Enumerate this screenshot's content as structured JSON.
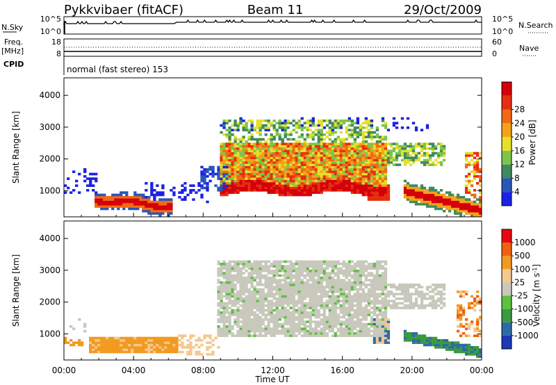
{
  "header": {
    "radar": "Pykkvibaer (fitACF)",
    "beam": "Beam 11",
    "date": "29/Oct/2009"
  },
  "status_panels": {
    "nsky_label": "N.Sky",
    "nsky_ticks": [
      "10^5",
      "10^0"
    ],
    "nsearch_label": "N.Search",
    "nsearch_ticks": [
      "10^5",
      "10^0"
    ],
    "freq_label_line1": "Freq.",
    "freq_label_line2": "[MHz]",
    "freq_ticks": [
      "18",
      "8"
    ],
    "nave_label": "Nave",
    "nave_ticks": [
      "60",
      "0"
    ],
    "cpid_label": "CPID",
    "cpid_value": "normal (fast stereo) 153"
  },
  "colors": {
    "power_scale": [
      "#1a22e6",
      "#2a56b8",
      "#3f8a5e",
      "#7fc44a",
      "#e6e02a",
      "#f5a21a",
      "#f06a14",
      "#e62e10",
      "#d4000a"
    ],
    "velocity_scale": [
      "#e60a10",
      "#f06010",
      "#f29a20",
      "#f5c890",
      "#c8c8bc",
      "#5cc040",
      "#3a9a40",
      "#2e6aa8",
      "#1a3ab8"
    ]
  },
  "chart_data": [
    {
      "type": "heatmap",
      "title": "",
      "ylabel": "Slant Range [km]",
      "xlabel": "",
      "x_ticks": [
        "00:00",
        "04:00",
        "08:00",
        "12:00",
        "16:00",
        "20:00",
        "00:00"
      ],
      "y_ticks": [
        "1000",
        "2000",
        "3000",
        "4000"
      ],
      "ylim": [
        180,
        4550
      ],
      "xlim_hours": [
        0,
        24
      ],
      "colorbar_label": "Power [dB]",
      "colorbar_ticks": [
        "4",
        "8",
        "12",
        "16",
        "20",
        "24",
        "28"
      ],
      "colorbar_range": [
        0,
        30
      ]
    },
    {
      "type": "heatmap",
      "title": "",
      "ylabel": "Slant Range [km]",
      "xlabel": "Time UT",
      "x_ticks": [
        "00:00",
        "04:00",
        "08:00",
        "12:00",
        "16:00",
        "20:00",
        "00:00"
      ],
      "y_ticks": [
        "1000",
        "2000",
        "3000",
        "4000"
      ],
      "ylim": [
        180,
        4550
      ],
      "xlim_hours": [
        0,
        24
      ],
      "colorbar_label": "Velocity [m s",
      "colorbar_label_sup": "-1",
      "colorbar_label_end": "]",
      "colorbar_ticks": [
        "1000",
        "500",
        "100",
        "25",
        "-25",
        "-100",
        "-500",
        "-1000"
      ]
    }
  ]
}
